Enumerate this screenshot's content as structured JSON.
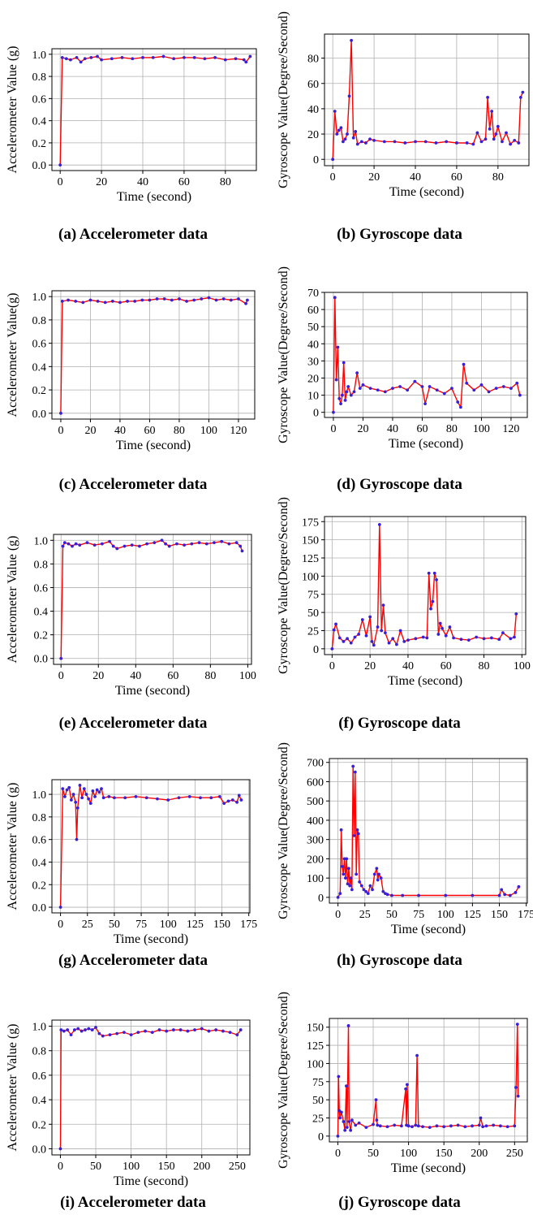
{
  "figure": {
    "captions": [
      "(a) Accelerometer data",
      "(b) Gyroscope data",
      "(c) Accelerometer data",
      "(d) Gyroscope data",
      "(e) Accelerometer data",
      "(f) Gyroscope data",
      "(g) Accelerometer data",
      "(h) Gyroscope data",
      "(i) Accelerometer data",
      "(j) Gyroscope data"
    ]
  },
  "colors": {
    "line": "#ff0000",
    "marker": "#3a1fd6",
    "grid": "#b0b0b0"
  },
  "chart_data": [
    {
      "type": "line",
      "xlabel": "Time (second)",
      "ylabel": "Accelerometer Value (g)",
      "xlim": [
        -4,
        95
      ],
      "ylim": [
        -0.05,
        1.05
      ],
      "xticks": [
        0,
        20,
        40,
        60,
        80
      ],
      "yticks": [
        0.0,
        0.2,
        0.4,
        0.6,
        0.8,
        1.0
      ],
      "ytick_labels": [
        "0.0",
        "0.2",
        "0.4",
        "0.6",
        "0.8",
        "1.0"
      ],
      "series": [
        {
          "x": [
            0,
            1,
            3,
            5,
            8,
            10,
            12,
            15,
            18,
            20,
            25,
            30,
            35,
            40,
            45,
            50,
            55,
            60,
            65,
            70,
            75,
            80,
            85,
            89,
            90,
            92
          ],
          "y": [
            0.0,
            0.97,
            0.96,
            0.95,
            0.97,
            0.93,
            0.96,
            0.97,
            0.98,
            0.95,
            0.96,
            0.97,
            0.96,
            0.97,
            0.97,
            0.98,
            0.96,
            0.97,
            0.97,
            0.96,
            0.97,
            0.95,
            0.96,
            0.95,
            0.93,
            0.98
          ]
        }
      ]
    },
    {
      "type": "line",
      "xlabel": "Time (second)",
      "ylabel": "Gyroscope Value(Degree/Second)",
      "xlim": [
        -4,
        95
      ],
      "ylim": [
        -5,
        99
      ],
      "xticks": [
        0,
        20,
        40,
        60,
        80
      ],
      "yticks": [
        0,
        20,
        40,
        60,
        80
      ],
      "ytick_labels": [
        "0",
        "20",
        "40",
        "60",
        "80"
      ],
      "series": [
        {
          "x": [
            0,
            1,
            2,
            3,
            4,
            5,
            6,
            7,
            8,
            9,
            10,
            11,
            12,
            14,
            16,
            18,
            20,
            25,
            30,
            35,
            40,
            45,
            50,
            55,
            60,
            65,
            68,
            70,
            72,
            74,
            75,
            76,
            77,
            78,
            79,
            80,
            82,
            84,
            86,
            88,
            90,
            91,
            92
          ],
          "y": [
            0,
            38,
            20,
            23,
            25,
            14,
            16,
            20,
            50,
            94,
            17,
            22,
            12,
            14,
            13,
            16,
            15,
            14,
            14,
            13,
            14,
            14,
            13,
            14,
            13,
            13,
            12,
            21,
            14,
            16,
            49,
            24,
            38,
            16,
            20,
            26,
            14,
            21,
            12,
            15,
            13,
            49,
            53
          ]
        }
      ]
    },
    {
      "type": "line",
      "xlabel": "Time (second)",
      "ylabel": "Accelerometer Value(g)",
      "xlim": [
        -6,
        131
      ],
      "ylim": [
        -0.05,
        1.05
      ],
      "xticks": [
        0,
        20,
        40,
        60,
        80,
        100,
        120
      ],
      "yticks": [
        0.0,
        0.2,
        0.4,
        0.6,
        0.8,
        1.0
      ],
      "ytick_labels": [
        "0.0",
        "0.2",
        "0.4",
        "0.6",
        "0.8",
        "1.0"
      ],
      "series": [
        {
          "x": [
            0,
            1,
            5,
            10,
            15,
            20,
            25,
            30,
            35,
            40,
            45,
            50,
            55,
            60,
            65,
            70,
            75,
            80,
            85,
            90,
            95,
            100,
            105,
            110,
            115,
            120,
            125,
            126
          ],
          "y": [
            0.0,
            0.96,
            0.97,
            0.96,
            0.95,
            0.97,
            0.96,
            0.95,
            0.96,
            0.95,
            0.96,
            0.96,
            0.97,
            0.97,
            0.98,
            0.98,
            0.97,
            0.98,
            0.96,
            0.97,
            0.98,
            0.99,
            0.97,
            0.98,
            0.97,
            0.98,
            0.94,
            0.97
          ]
        }
      ]
    },
    {
      "type": "line",
      "xlabel": "Time (second)",
      "ylabel": "Gyroscope Value(Degree/Second)",
      "xlim": [
        -6,
        131
      ],
      "ylim": [
        -3,
        70
      ],
      "xticks": [
        0,
        20,
        40,
        60,
        80,
        100,
        120
      ],
      "yticks": [
        0,
        10,
        20,
        30,
        40,
        50,
        60,
        70
      ],
      "ytick_labels": [
        "0",
        "10",
        "20",
        "30",
        "40",
        "50",
        "60",
        "70"
      ],
      "series": [
        {
          "x": [
            0,
            1,
            2,
            3,
            4,
            5,
            6,
            7,
            8,
            9,
            10,
            12,
            14,
            16,
            18,
            20,
            25,
            30,
            35,
            40,
            45,
            50,
            55,
            60,
            62,
            65,
            70,
            75,
            80,
            84,
            86,
            88,
            90,
            95,
            100,
            105,
            110,
            115,
            120,
            124,
            126
          ],
          "y": [
            0,
            67,
            19,
            38,
            8,
            5,
            10,
            29,
            7,
            12,
            15,
            10,
            12,
            23,
            14,
            16,
            14,
            13,
            12,
            14,
            15,
            13,
            18,
            15,
            5,
            15,
            13,
            11,
            14,
            6,
            3,
            28,
            17,
            13,
            16,
            12,
            14,
            15,
            14,
            17,
            10
          ]
        }
      ]
    },
    {
      "type": "line",
      "xlabel": "Time (second)",
      "ylabel": "Accelerometer Value (g)",
      "xlim": [
        -4,
        102
      ],
      "ylim": [
        -0.05,
        1.05
      ],
      "xticks": [
        0,
        20,
        40,
        60,
        80,
        100
      ],
      "yticks": [
        0.0,
        0.2,
        0.4,
        0.6,
        0.8,
        1.0
      ],
      "ytick_labels": [
        "0.0",
        "0.2",
        "0.4",
        "0.6",
        "0.8",
        "1.0"
      ],
      "series": [
        {
          "x": [
            0,
            1,
            2,
            4,
            6,
            8,
            10,
            14,
            18,
            22,
            26,
            28,
            30,
            34,
            38,
            42,
            46,
            50,
            54,
            56,
            58,
            62,
            66,
            70,
            74,
            78,
            82,
            86,
            90,
            94,
            96,
            97
          ],
          "y": [
            0.0,
            0.95,
            0.98,
            0.97,
            0.95,
            0.97,
            0.96,
            0.98,
            0.96,
            0.97,
            0.99,
            0.95,
            0.93,
            0.95,
            0.96,
            0.95,
            0.97,
            0.98,
            1.0,
            0.97,
            0.95,
            0.97,
            0.96,
            0.97,
            0.98,
            0.97,
            0.98,
            0.99,
            0.97,
            0.98,
            0.95,
            0.91
          ]
        }
      ]
    },
    {
      "type": "line",
      "xlabel": "Time (second)",
      "ylabel": "Gyroscope Value(Degree/Second)",
      "xlim": [
        -4,
        102
      ],
      "ylim": [
        -8,
        182
      ],
      "xticks": [
        0,
        20,
        40,
        60,
        80,
        100
      ],
      "yticks": [
        0,
        25,
        50,
        75,
        100,
        125,
        150,
        175
      ],
      "ytick_labels": [
        "0",
        "25",
        "50",
        "75",
        "100",
        "125",
        "150",
        "175"
      ],
      "series": [
        {
          "x": [
            0,
            1,
            2,
            4,
            6,
            8,
            10,
            12,
            14,
            16,
            18,
            20,
            21,
            22,
            24,
            25,
            26,
            27,
            28,
            30,
            32,
            34,
            36,
            38,
            40,
            44,
            48,
            50,
            51,
            52,
            53,
            54,
            55,
            56,
            57,
            58,
            60,
            62,
            64,
            68,
            72,
            76,
            80,
            84,
            88,
            90,
            94,
            96,
            97
          ],
          "y": [
            0,
            26,
            34,
            15,
            10,
            14,
            8,
            16,
            20,
            40,
            18,
            44,
            10,
            5,
            30,
            171,
            25,
            60,
            22,
            8,
            14,
            6,
            25,
            10,
            12,
            14,
            16,
            15,
            104,
            55,
            65,
            104,
            95,
            20,
            35,
            28,
            18,
            30,
            15,
            13,
            12,
            16,
            14,
            15,
            13,
            22,
            14,
            16,
            48
          ]
        }
      ]
    },
    {
      "type": "line",
      "xlabel": "Time (second)",
      "ylabel": "Accelerometer Value (g)",
      "xlim": [
        -8,
        176
      ],
      "ylim": [
        -0.05,
        1.13
      ],
      "xticks": [
        0,
        25,
        50,
        75,
        100,
        125,
        150,
        175
      ],
      "yticks": [
        0.0,
        0.2,
        0.4,
        0.6,
        0.8,
        1.0
      ],
      "ytick_labels": [
        "0.0",
        "0.2",
        "0.4",
        "0.6",
        "0.8",
        "1.0"
      ],
      "series": [
        {
          "x": [
            0,
            2,
            4,
            6,
            8,
            10,
            12,
            14,
            15,
            16,
            18,
            20,
            22,
            24,
            26,
            28,
            30,
            32,
            34,
            36,
            38,
            40,
            45,
            50,
            60,
            70,
            80,
            90,
            100,
            110,
            120,
            130,
            140,
            148,
            152,
            156,
            160,
            164,
            166,
            168
          ],
          "y": [
            0.0,
            1.05,
            0.98,
            1.04,
            1.06,
            0.95,
            1.0,
            0.93,
            0.6,
            0.88,
            1.08,
            0.97,
            1.05,
            1.0,
            0.96,
            0.92,
            1.03,
            0.98,
            1.04,
            1.02,
            1.05,
            0.97,
            0.98,
            0.97,
            0.97,
            0.98,
            0.97,
            0.96,
            0.95,
            0.97,
            0.98,
            0.97,
            0.97,
            0.98,
            0.92,
            0.94,
            0.95,
            0.93,
            0.99,
            0.95
          ]
        }
      ]
    },
    {
      "type": "line",
      "xlabel": "Time (second)",
      "ylabel": "Gyroscope Value(Degree/Second)",
      "xlim": [
        -8,
        176
      ],
      "ylim": [
        -30,
        720
      ],
      "xticks": [
        0,
        25,
        50,
        75,
        100,
        125,
        150,
        175
      ],
      "yticks": [
        0,
        100,
        200,
        300,
        400,
        500,
        600,
        700
      ],
      "ytick_labels": [
        "0",
        "100",
        "200",
        "300",
        "400",
        "500",
        "600",
        "700"
      ],
      "series": [
        {
          "x": [
            0,
            2,
            3,
            4,
            5,
            6,
            7,
            8,
            9,
            10,
            11,
            12,
            13,
            14,
            15,
            16,
            17,
            18,
            19,
            20,
            22,
            24,
            26,
            28,
            30,
            32,
            34,
            36,
            37,
            38,
            40,
            42,
            44,
            46,
            50,
            60,
            75,
            100,
            125,
            150,
            152,
            155,
            160,
            165,
            168
          ],
          "y": [
            0,
            20,
            350,
            160,
            120,
            200,
            100,
            200,
            70,
            150,
            60,
            100,
            40,
            680,
            320,
            650,
            120,
            350,
            330,
            80,
            60,
            40,
            30,
            20,
            60,
            40,
            120,
            150,
            90,
            120,
            100,
            30,
            20,
            15,
            10,
            10,
            10,
            10,
            10,
            10,
            40,
            15,
            10,
            25,
            55
          ]
        }
      ]
    },
    {
      "type": "line",
      "xlabel": "Time (second)",
      "ylabel": "Accelerometer Value (g)",
      "xlim": [
        -12,
        268
      ],
      "ylim": [
        -0.05,
        1.05
      ],
      "xticks": [
        0,
        50,
        100,
        150,
        200,
        250
      ],
      "yticks": [
        0.0,
        0.2,
        0.4,
        0.6,
        0.8,
        1.0
      ],
      "ytick_labels": [
        "0.0",
        "0.2",
        "0.4",
        "0.6",
        "0.8",
        "1.0"
      ],
      "series": [
        {
          "x": [
            0,
            1,
            5,
            10,
            15,
            20,
            25,
            30,
            35,
            40,
            45,
            50,
            55,
            60,
            70,
            80,
            90,
            100,
            110,
            120,
            130,
            140,
            150,
            160,
            170,
            180,
            190,
            200,
            210,
            220,
            230,
            240,
            250,
            255
          ],
          "y": [
            0.0,
            0.97,
            0.96,
            0.97,
            0.93,
            0.97,
            0.98,
            0.96,
            0.97,
            0.98,
            0.97,
            0.99,
            0.94,
            0.92,
            0.93,
            0.94,
            0.95,
            0.93,
            0.95,
            0.96,
            0.95,
            0.97,
            0.96,
            0.97,
            0.97,
            0.96,
            0.97,
            0.98,
            0.96,
            0.97,
            0.96,
            0.95,
            0.93,
            0.97
          ]
        }
      ]
    },
    {
      "type": "line",
      "xlabel": "Time (second)",
      "ylabel": "Gyroscope Value(Degree/Second)",
      "xlim": [
        -12,
        268
      ],
      "ylim": [
        -8,
        162
      ],
      "xticks": [
        0,
        50,
        100,
        150,
        200,
        250
      ],
      "yticks": [
        0,
        25,
        50,
        75,
        100,
        125,
        150
      ],
      "ytick_labels": [
        "0",
        "25",
        "50",
        "75",
        "100",
        "125",
        "150"
      ],
      "series": [
        {
          "x": [
            0,
            1,
            2,
            3,
            5,
            8,
            10,
            12,
            13,
            15,
            16,
            18,
            20,
            25,
            30,
            40,
            50,
            54,
            55,
            56,
            60,
            70,
            80,
            90,
            96,
            97,
            98,
            100,
            105,
            110,
            112,
            114,
            120,
            130,
            140,
            150,
            160,
            170,
            180,
            190,
            200,
            202,
            205,
            210,
            220,
            230,
            240,
            250,
            252,
            254,
            255
          ],
          "y": [
            0,
            82,
            35,
            25,
            33,
            20,
            8,
            69,
            12,
            152,
            20,
            8,
            22,
            15,
            18,
            12,
            16,
            50,
            22,
            15,
            14,
            13,
            15,
            14,
            65,
            15,
            71,
            14,
            13,
            15,
            111,
            14,
            13,
            12,
            14,
            13,
            14,
            15,
            13,
            14,
            15,
            25,
            13,
            14,
            15,
            14,
            13,
            14,
            67,
            154,
            55
          ]
        }
      ]
    }
  ]
}
